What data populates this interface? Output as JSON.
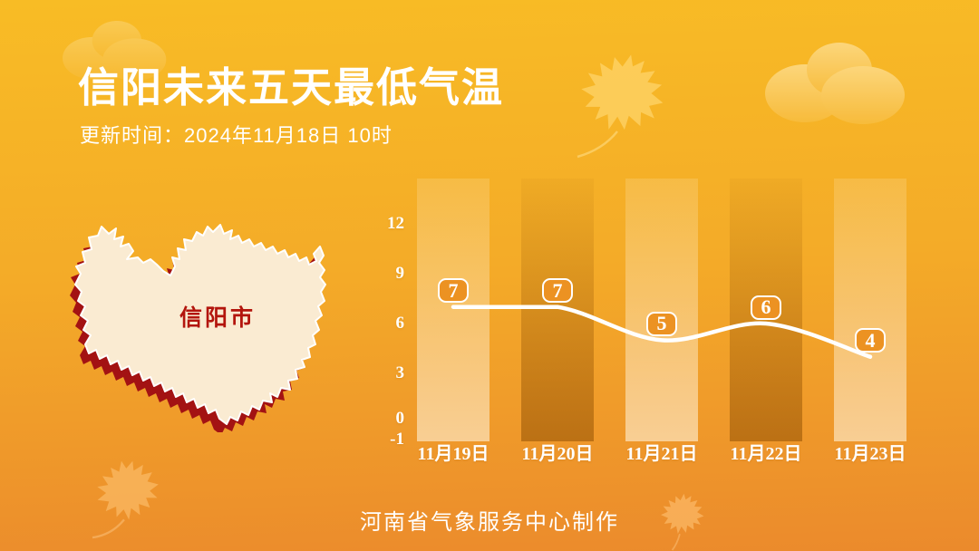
{
  "header": {
    "title": "信阳未来五天最低气温",
    "update_time": "更新时间：2024年11月18日 10时"
  },
  "map": {
    "region_label": "信阳市"
  },
  "footer": {
    "credit": "河南省气象服务中心制作"
  },
  "chart_data": {
    "type": "line",
    "title": "信阳未来五天最低气温",
    "categories": [
      "11月19日",
      "11月20日",
      "11月21日",
      "11月22日",
      "11月23日"
    ],
    "values": [
      7,
      7,
      5,
      6,
      4
    ],
    "point_labels": [
      "7",
      "7",
      "5",
      "6",
      "4"
    ],
    "yticks": [
      12,
      9,
      6,
      3,
      0,
      -1
    ],
    "ylim": [
      -1,
      14
    ],
    "xlabel": "",
    "ylabel": "",
    "grid": false,
    "legend": "none",
    "marker_style": "rounded-rect-badge",
    "background_bars": "alternating light/dark vertical gradient stripes"
  },
  "colors": {
    "background_top": "#F8BC25",
    "background_bottom": "#EB8A2C",
    "line": "#FFFFFF",
    "badge_fill": "#EC9222",
    "text": "#FFFFFF",
    "map_fill": "#FAEBD2",
    "map_shadow": "#A31213",
    "map_stroke": "#FFFFFF",
    "map_label": "#B3150D"
  },
  "icons": {
    "cloud": "layered light-yellow ellipses",
    "maple-leaf": "light translucent leaf silhouette"
  }
}
